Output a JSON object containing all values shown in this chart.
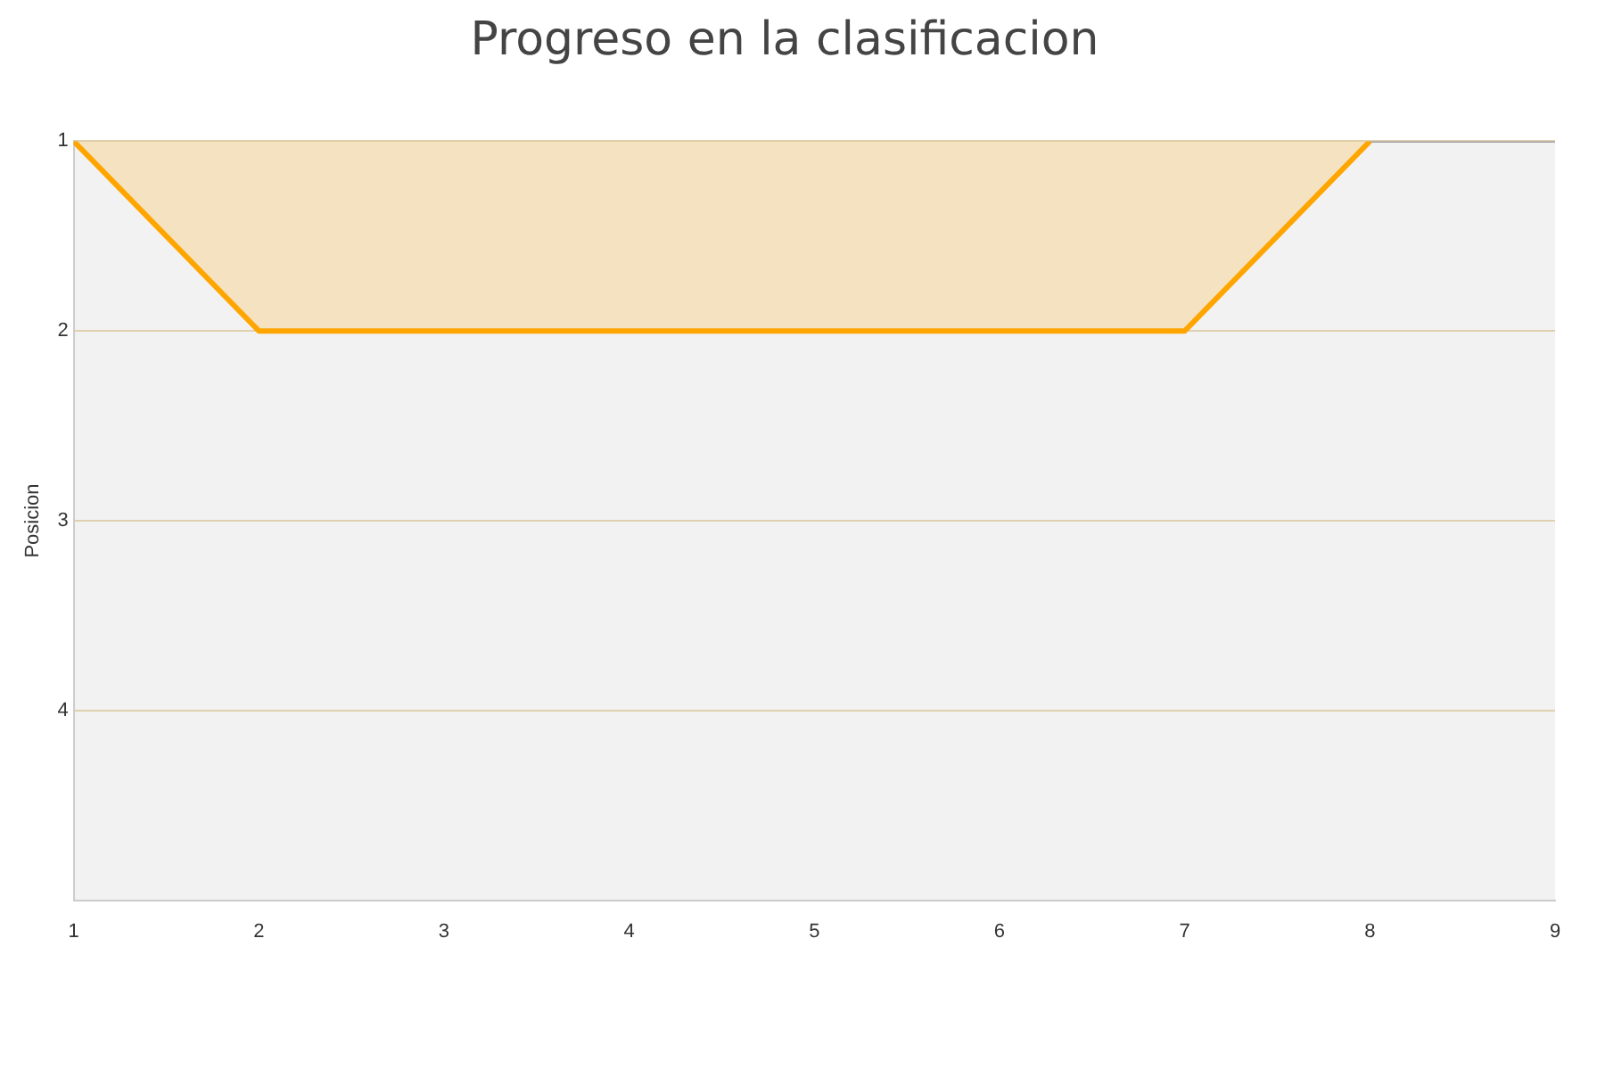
{
  "chart_data": {
    "type": "area",
    "title": "Progreso en la clasificacion",
    "ylabel": "Posicion",
    "x": [
      1,
      2,
      3,
      4,
      5,
      6,
      7,
      8
    ],
    "series": [
      {
        "color": "#ffa500",
        "values": [
          1,
          2,
          2,
          2,
          2,
          2,
          2,
          1
        ]
      },
      {
        "type": "line",
        "color": "#a0a0a0",
        "x": [
          8,
          9
        ],
        "values": [
          1,
          1
        ]
      }
    ],
    "xlim": [
      1,
      9
    ],
    "xticks": [
      1,
      2,
      3,
      4,
      5,
      6,
      7,
      8,
      9
    ],
    "ylim": [
      5,
      1
    ],
    "yticks": [
      1,
      2,
      3,
      4
    ],
    "grid": "y",
    "marker": "none",
    "line_style": "solid"
  }
}
